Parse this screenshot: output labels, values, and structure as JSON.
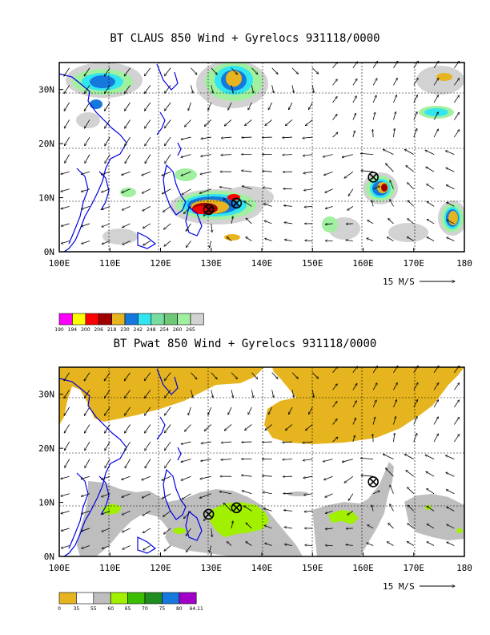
{
  "panels": [
    {
      "title": "BT CLAUS 850 Wind + Gyrelocs 931118/0000",
      "scale_label": "15 M/S",
      "colorbar_labels": [
        "190",
        "194",
        "200",
        "206",
        "218",
        "230",
        "242",
        "248",
        "254",
        "260",
        "265"
      ],
      "colorbar_colors": [
        "#ff00ff",
        "#ffff00",
        "#ff0000",
        "#a00000",
        "#e6b41e",
        "#1478dc",
        "#32e6f0",
        "#78dca0",
        "#6ec878",
        "#a0f0a0",
        "#d2d2d2"
      ]
    },
    {
      "title": "BT Pwat 850 Wind + Gyrelocs 931118/0000",
      "scale_label": "15 M/S",
      "colorbar_labels": [
        "0",
        "35",
        "55",
        "60",
        "65",
        "70",
        "75",
        "80",
        "64.11"
      ],
      "colorbar_colors": [
        "#e6b41e",
        "#ffffff",
        "#bebebe",
        "#a0f000",
        "#3cbe00",
        "#1e8c1e",
        "#1478dc",
        "#a000c8"
      ]
    }
  ],
  "lat_labels": [
    "30N",
    "20N",
    "10N",
    "0N"
  ],
  "lon_labels": [
    "100E",
    "110E",
    "120E",
    "130E",
    "140E",
    "150E",
    "160E",
    "170E",
    "180"
  ],
  "gyre_locations": [
    [
      129.5,
      7.8
    ],
    [
      135,
      9
    ],
    [
      162,
      13.8
    ]
  ]
}
